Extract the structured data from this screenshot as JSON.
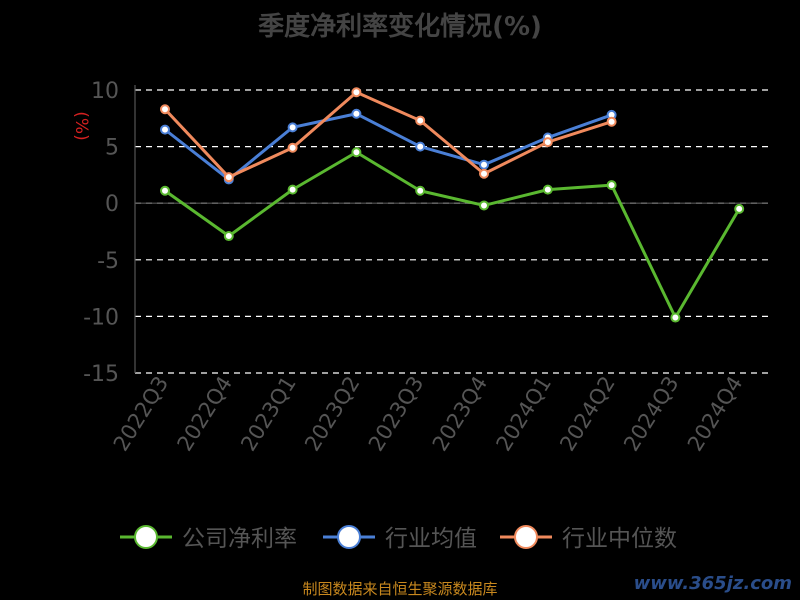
{
  "chart_data": {
    "type": "line",
    "title": "季度净利率变化情况(%)",
    "ylabel": "(%)",
    "categories": [
      "2022Q3",
      "2022Q4",
      "2023Q1",
      "2023Q2",
      "2023Q3",
      "2023Q4",
      "2024Q1",
      "2024Q2",
      "2024Q3",
      "2024Q4"
    ],
    "ylim": [
      -15,
      10
    ],
    "yticks": [
      10,
      5,
      0,
      -5,
      -10,
      -15
    ],
    "grid": true,
    "legend_position": "bottom",
    "series": [
      {
        "name": "公司净利率",
        "color": "#5ab830",
        "values": [
          1.1,
          -2.9,
          1.2,
          4.5,
          1.1,
          -0.2,
          1.2,
          1.6,
          -10.1,
          -0.5
        ]
      },
      {
        "name": "行业均值",
        "color": "#4a7fd6",
        "values": [
          6.5,
          2.1,
          6.7,
          7.9,
          5.0,
          3.4,
          5.8,
          7.8,
          null,
          null
        ]
      },
      {
        "name": "行业中位数",
        "color": "#f08a5d",
        "values": [
          8.3,
          2.3,
          4.9,
          9.8,
          7.3,
          2.6,
          5.4,
          7.2,
          null,
          null
        ]
      }
    ]
  },
  "footer": {
    "source": "制图数据来自恒生聚源数据库",
    "watermark": "www.365jz.com"
  }
}
